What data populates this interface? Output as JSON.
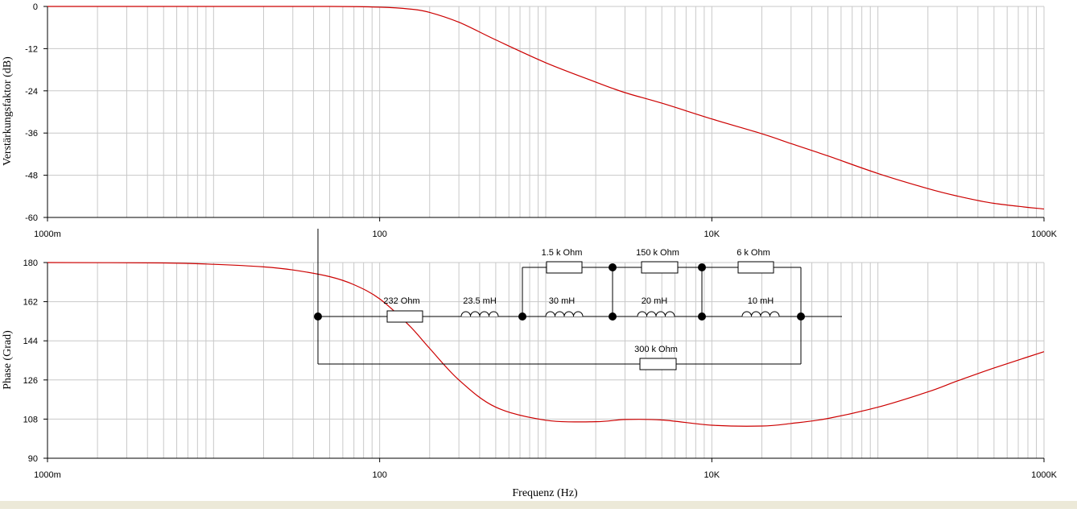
{
  "chart_data": [
    {
      "type": "line",
      "title": "",
      "xlabel": "",
      "ylabel": "Verstärkungsfaktor (dB)",
      "xscale": "log",
      "xlim": [
        1,
        1000000
      ],
      "ylim": [
        -60,
        0
      ],
      "yticks": [
        0,
        -12,
        -24,
        -36,
        -48,
        -60
      ],
      "xticks": [
        1,
        100,
        10000,
        1000000
      ],
      "xtick_labels": [
        "1000m",
        "100",
        "10K",
        "1000K"
      ],
      "grid": true,
      "series": [
        {
          "color": "#cc0000",
          "x": [
            1,
            10,
            50,
            100,
            150,
            200,
            300,
            500,
            1000,
            2000,
            3000,
            5000,
            10000,
            20000,
            30000,
            50000,
            100000,
            200000,
            300000,
            500000,
            1000000
          ],
          "y": [
            0,
            0,
            0,
            -0.2,
            -0.7,
            -1.7,
            -4.5,
            -9.5,
            -16,
            -21.5,
            -24.5,
            -27.5,
            -32,
            -36.2,
            -39,
            -42.5,
            -47.5,
            -51.8,
            -53.9,
            -56,
            -57.6
          ]
        }
      ]
    },
    {
      "type": "line",
      "title": "",
      "xlabel": "Frequenz (Hz)",
      "ylabel": "Phase (Grad)",
      "xscale": "log",
      "xlim": [
        1,
        1000000
      ],
      "ylim": [
        90,
        180
      ],
      "yticks": [
        180,
        162,
        144,
        126,
        108,
        90
      ],
      "xticks": [
        1,
        100,
        10000,
        1000000
      ],
      "xtick_labels": [
        "1000m",
        "100",
        "10K",
        "1000K"
      ],
      "grid": true,
      "series": [
        {
          "color": "#cc0000",
          "x": [
            1,
            5,
            10,
            20,
            30,
            50,
            70,
            100,
            150,
            200,
            300,
            500,
            1000,
            2000,
            3000,
            5000,
            10000,
            20000,
            30000,
            50000,
            100000,
            200000,
            300000,
            500000,
            1000000
          ],
          "y": [
            180,
            179.8,
            179.2,
            178,
            176.6,
            173.5,
            169.8,
            163.3,
            151.2,
            140.5,
            126,
            113.5,
            107.5,
            106.8,
            107.8,
            107.6,
            105.2,
            104.8,
            106,
            108.3,
            113.5,
            120.5,
            125.5,
            131.5,
            139
          ]
        }
      ]
    }
  ],
  "circuit": {
    "labels": {
      "r_series": "232  Ohm",
      "l_series": "23.5 mH",
      "r1": "1.5 k Ohm",
      "l1": "30 mH",
      "r2": "150 k Ohm",
      "l2": "20 mH",
      "r3": "6 k Ohm",
      "l3": "10 mH",
      "r_parallel": "300 k Ohm"
    }
  },
  "colors": {
    "grid": "#c8c8c8",
    "axis": "#000000",
    "curve": "#cc0000",
    "circuit": "#000000"
  }
}
